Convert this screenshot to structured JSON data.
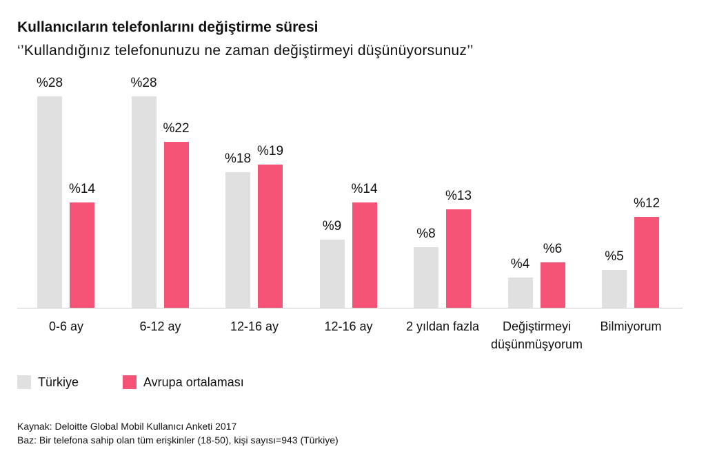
{
  "chart_data": {
    "type": "bar",
    "title": "Kullanıcıların telefonlarını değiştirme süresi",
    "subtitle": "‘’Kullandığınız telefonunuzu ne zaman değiştirmeyi düşünüyorsunuz’’",
    "categories": [
      "0-6 ay",
      "6-12 ay",
      "12-16 ay",
      "12-16 ay",
      "2 yıldan fazla",
      "Değiştirmeyi düşünmüşyorum",
      "Bilmiyorum"
    ],
    "series": [
      {
        "name": "Türkiye",
        "color": "#e0e0e0",
        "values": [
          28,
          28,
          18,
          9,
          8,
          4,
          5
        ],
        "value_labels": [
          "%28",
          "%28",
          "%18",
          "%9",
          "%8",
          "%4",
          "%5"
        ]
      },
      {
        "name": "Avrupa ortalaması",
        "color": "#f65476",
        "values": [
          14,
          22,
          19,
          14,
          13,
          6,
          12
        ],
        "value_labels": [
          "%14",
          "%22",
          "%19",
          "%14",
          "%13",
          "%6",
          "%12"
        ]
      }
    ],
    "notes": [
      "Kaynak: Deloitte Global Mobil Kullanıcı Anketi 2017",
      "Baz: Bir telefona sahip olan tüm erişkinler (18-50), kişi sayısı=943 (Türkiye)"
    ]
  }
}
